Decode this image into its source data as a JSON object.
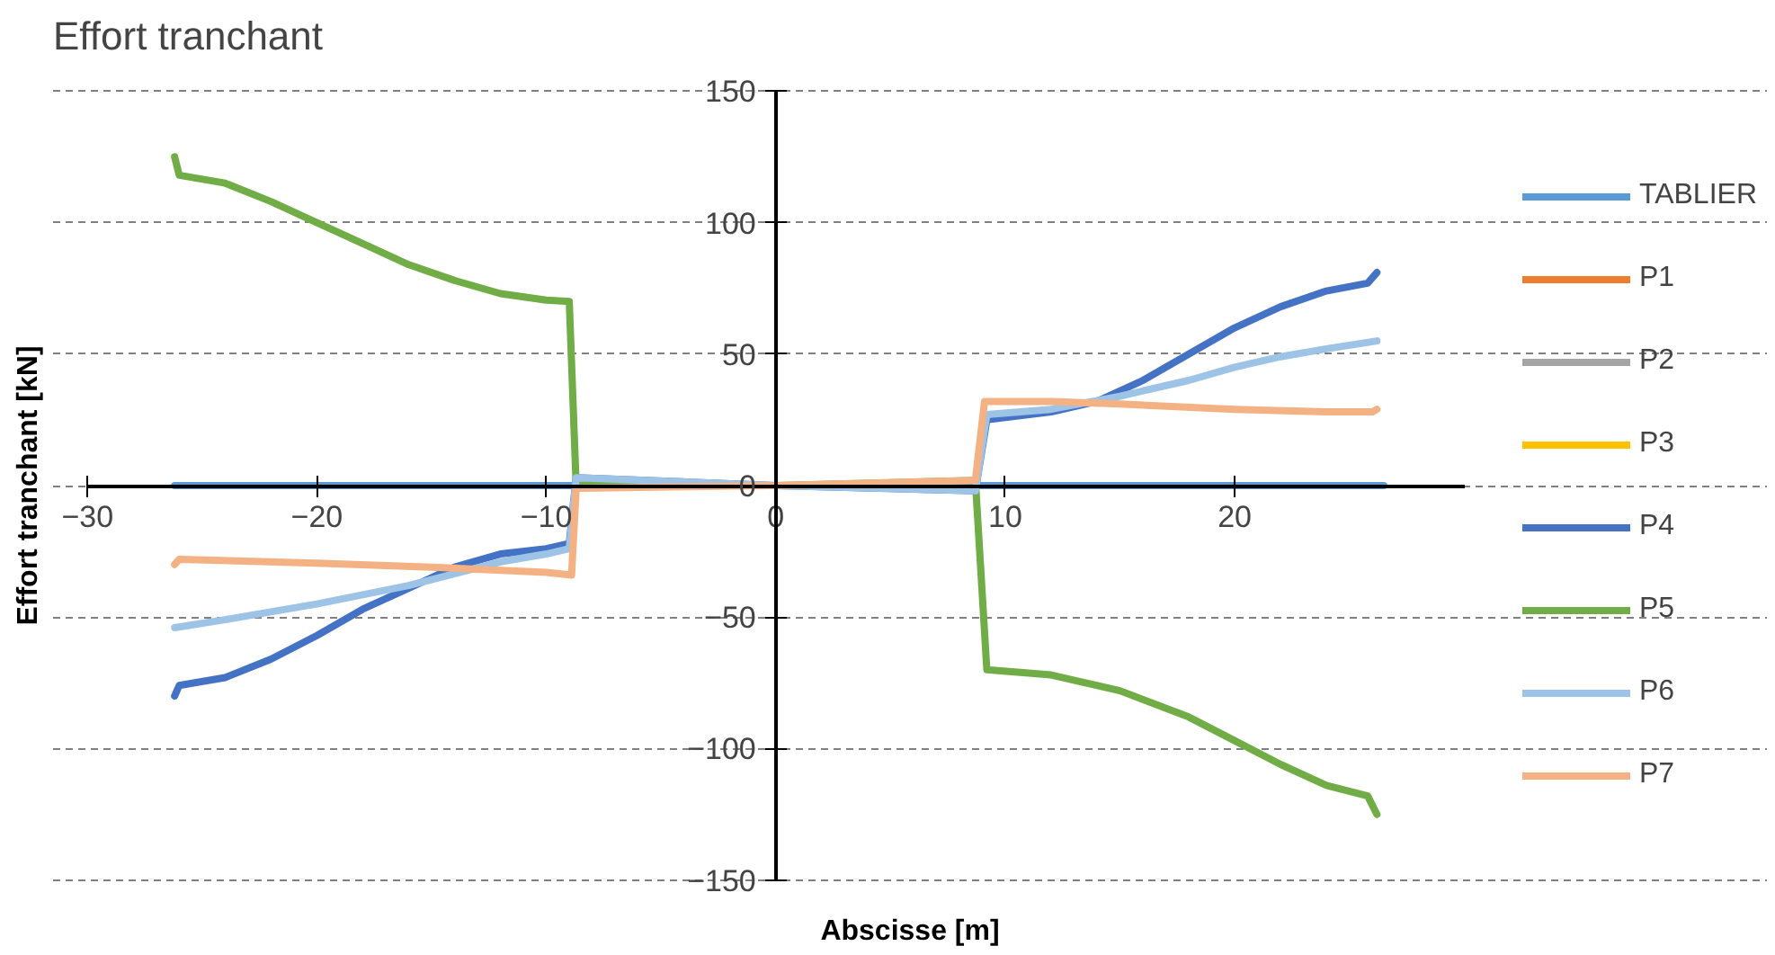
{
  "chart_data": {
    "type": "line",
    "title": "Effort tranchant",
    "xlabel": "Abscisse [m]",
    "ylabel": "Effort tranchant [kN]",
    "xlim": [
      -30,
      30
    ],
    "xticks": [
      -30,
      -20,
      -10,
      0,
      10,
      20
    ],
    "ylim": [
      -150,
      150
    ],
    "yticks": [
      -150,
      -100,
      -50,
      0,
      50,
      100,
      150
    ],
    "grid": "y",
    "legend": "right",
    "line_style": "solid",
    "series": [
      {
        "name": "TABLIER",
        "color": "#5b9bd5",
        "x": [
          -26.2,
          26.5
        ],
        "values": [
          0,
          0
        ]
      },
      {
        "name": "P1",
        "color": "#ed7d31"
      },
      {
        "name": "P2",
        "color": "#a5a5a5"
      },
      {
        "name": "P3",
        "color": "#ffc000"
      },
      {
        "name": "P4",
        "color": "#4472c4",
        "x": [
          -26.2,
          -26,
          -24,
          -22,
          -20,
          -18,
          -16,
          -14,
          -12,
          -10,
          -9,
          -8.7,
          0,
          8.7,
          9.2,
          12,
          14,
          16,
          18,
          20,
          22,
          24,
          25.8,
          26.2
        ],
        "values": [
          -80,
          -76,
          -73,
          -66,
          -57,
          -47,
          -39,
          -31,
          -26,
          -24,
          -22,
          3,
          0,
          -2,
          25,
          28,
          32,
          40,
          50,
          60,
          68,
          74,
          77,
          81
        ]
      },
      {
        "name": "P5",
        "color": "#70ad47",
        "x": [
          -26.2,
          -26,
          -24,
          -22,
          -20,
          -18,
          -16,
          -14,
          -12,
          -10,
          -9,
          -8.7,
          0,
          8.7,
          9.2,
          12,
          15,
          18,
          20,
          22,
          24,
          25.8,
          26.2
        ],
        "values": [
          125,
          118,
          115,
          108,
          100,
          92,
          84,
          78,
          73,
          70.5,
          70,
          0,
          0,
          2,
          -70,
          -72,
          -78,
          -88,
          -97,
          -106,
          -114,
          -118,
          -125
        ]
      },
      {
        "name": "P6",
        "color": "#9dc3e6",
        "x": [
          -26.2,
          -24,
          -20,
          -16,
          -12,
          -10,
          -9,
          -8.7,
          0,
          8.7,
          9.2,
          12,
          15,
          18,
          20,
          22,
          24,
          26.2
        ],
        "values": [
          -54,
          -51,
          -45,
          -38,
          -29,
          -26,
          -24,
          3,
          0,
          -2,
          27,
          29,
          34,
          40,
          45,
          49,
          52,
          55
        ]
      },
      {
        "name": "P7",
        "color": "#f4b183",
        "x": [
          -26.2,
          -26,
          -20,
          -15,
          -10,
          -8.9,
          -8.7,
          0,
          8.7,
          9.1,
          12,
          15,
          20,
          24,
          26,
          26.2
        ],
        "values": [
          -30,
          -28,
          -29.5,
          -31,
          -33,
          -34,
          -1,
          0,
          2,
          32,
          32,
          31,
          29,
          28,
          28,
          29
        ]
      }
    ]
  }
}
